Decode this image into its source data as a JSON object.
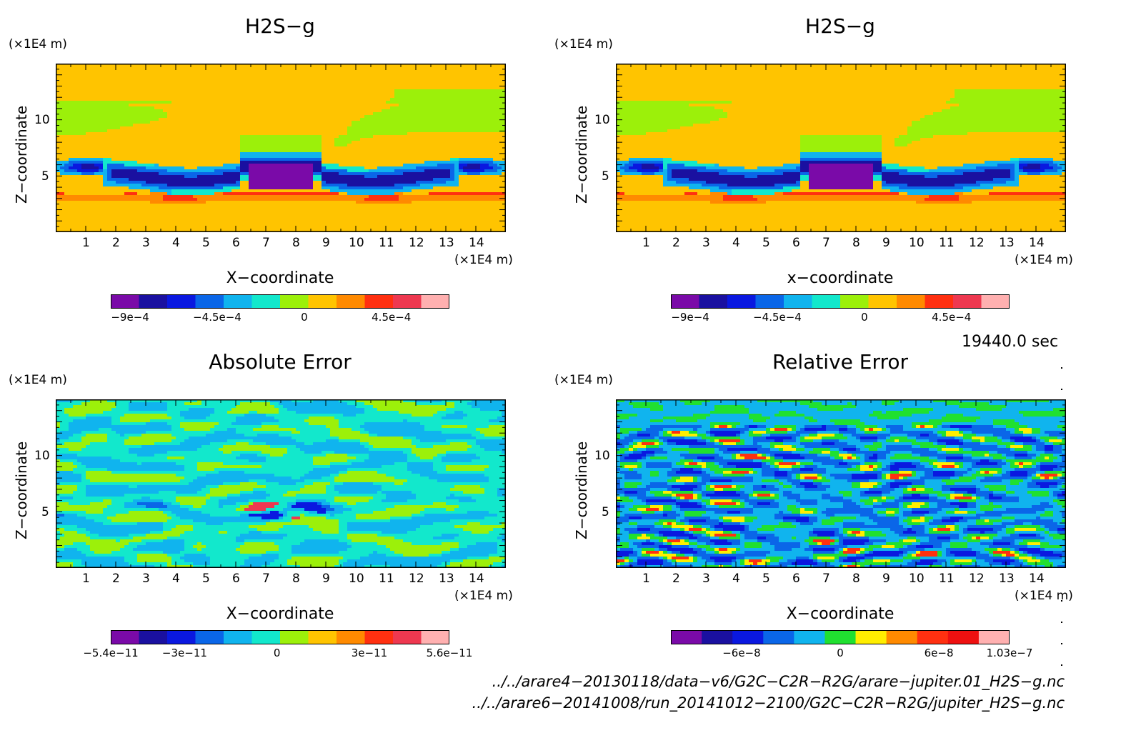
{
  "panels": [
    {
      "title": "H2S−g",
      "xunit": "(×1E4 m)",
      "yunit": "(×1E4 m)",
      "xlabel": "X−coordinate",
      "ylabel": "Z−coordinate",
      "colorbar_labels": [
        "−9e−4",
        "−4.5e−4",
        "0",
        "4.5e−4"
      ]
    },
    {
      "title": "H2S−g",
      "xunit": "(×1E4 m)",
      "yunit": "(×1E4 m)",
      "xlabel": "x−coordinate",
      "ylabel": "Z−coordinate",
      "colorbar_labels": [
        "−9e−4",
        "−4.5e−4",
        "0",
        "4.5e−4"
      ]
    },
    {
      "title": "Absolute Error",
      "xunit": "(×1E4 m)",
      "yunit": "(×1E4 m)",
      "xlabel": "X−coordinate",
      "ylabel": "Z−coordinate",
      "colorbar_labels": [
        "−5.4e−11",
        "−3e−11",
        "0",
        "3e−11",
        "5.6e−11"
      ]
    },
    {
      "title": "Relative Error",
      "xunit": "(×1E4 m)",
      "yunit": "(×1E4 m)",
      "xlabel": "X−coordinate",
      "ylabel": "Z−coordinate",
      "colorbar_labels": [
        "−6e−8",
        "0",
        "6e−8",
        "1.03e−7"
      ]
    }
  ],
  "time_label": "19440.0 sec",
  "file_paths": [
    "../../arare4−20130118/data−v6/G2C−C2R−R2G/arare−jupiter.01_H2S−g.nc",
    "../../arare6−20141008/run_20141012−2100/G2C−C2R−R2G/jupiter_H2S−g.nc"
  ],
  "chart_data": [
    {
      "type": "heatmap",
      "title": "H2S−g",
      "xlabel": "X−coordinate",
      "ylabel": "Z−coordinate",
      "xticks": [
        1,
        2,
        3,
        4,
        5,
        6,
        7,
        8,
        9,
        10,
        11,
        12,
        13,
        14
      ],
      "yticks": [
        5,
        10
      ],
      "xlim": [
        0,
        15
      ],
      "ylim": [
        0,
        15
      ],
      "colorbar": {
        "min": -0.001,
        "max": 0.00075,
        "labels": [
          -0.0009,
          -0.00045,
          0,
          0.00045
        ]
      }
    },
    {
      "type": "heatmap",
      "title": "H2S−g",
      "xlabel": "x−coordinate",
      "ylabel": "Z−coordinate",
      "xticks": [
        1,
        2,
        3,
        4,
        5,
        6,
        7,
        8,
        9,
        10,
        11,
        12,
        13,
        14
      ],
      "yticks": [
        5,
        10
      ],
      "xlim": [
        0,
        15
      ],
      "ylim": [
        0,
        15
      ],
      "colorbar": {
        "min": -0.001,
        "max": 0.00075,
        "labels": [
          -0.0009,
          -0.00045,
          0,
          0.00045
        ]
      }
    },
    {
      "type": "heatmap",
      "title": "Absolute Error",
      "xlabel": "X−coordinate",
      "ylabel": "Z−coordinate",
      "xticks": [
        1,
        2,
        3,
        4,
        5,
        6,
        7,
        8,
        9,
        10,
        11,
        12,
        13,
        14
      ],
      "yticks": [
        5,
        10
      ],
      "xlim": [
        0,
        15
      ],
      "ylim": [
        0,
        15
      ],
      "colorbar": {
        "min": -5.4e-11,
        "max": 5.6e-11,
        "labels": [
          -5.4e-11,
          -3e-11,
          0,
          3e-11,
          5.6e-11
        ]
      }
    },
    {
      "type": "heatmap",
      "title": "Relative Error",
      "xlabel": "X−coordinate",
      "ylabel": "Z−coordinate",
      "xticks": [
        1,
        2,
        3,
        4,
        5,
        6,
        7,
        8,
        9,
        10,
        11,
        12,
        13,
        14
      ],
      "yticks": [
        5,
        10
      ],
      "xlim": [
        0,
        15
      ],
      "ylim": [
        0,
        15
      ],
      "colorbar": {
        "min": -1.03e-07,
        "max": 1.03e-07,
        "labels": [
          -6e-08,
          0,
          6e-08,
          1.03e-07
        ]
      }
    }
  ],
  "colors": {
    "levels": [
      "#7a0aa8",
      "#1a10a0",
      "#0a18e0",
      "#0a66e8",
      "#10b4ee",
      "#12e8cc",
      "#9cf00a",
      "#ffc400",
      "#ff8a00",
      "#ff3010",
      "#ee3850",
      "#ffb0b0"
    ],
    "rel_levels": [
      "#7a0aa8",
      "#1a10a0",
      "#0a18e0",
      "#0a66e8",
      "#10b4ee",
      "#20e030",
      "#ffee00",
      "#ff8a00",
      "#ff3010",
      "#ee1010",
      "#ffb0b0"
    ]
  }
}
